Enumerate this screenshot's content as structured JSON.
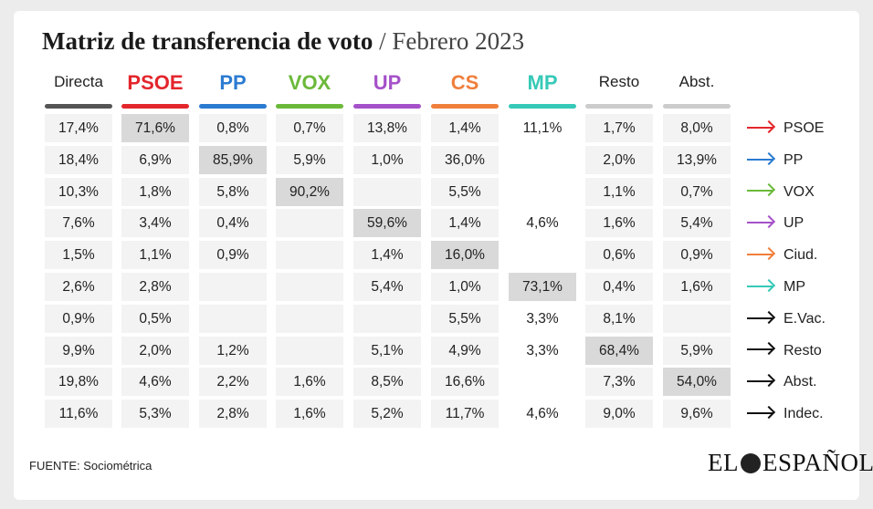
{
  "title": {
    "main": "Matriz de transferencia de voto",
    "separator": " / ",
    "date": "Febrero 2023"
  },
  "colors": {
    "PSOE": "#e3262c",
    "PP": "#2b7bd1",
    "VOX": "#6bb93a",
    "UP": "#a551c9",
    "CS": "#f07f3c",
    "MP": "#36c9b7",
    "neutral": "#cccccc",
    "highlight": "#d9d9d9",
    "cell": "#f3f3f3",
    "black": "#111111"
  },
  "chart_data": {
    "type": "table",
    "columns": [
      {
        "label": "Directa",
        "party": false,
        "color": "#555555"
      },
      {
        "label": "PSOE",
        "party": true,
        "color": "#e3262c"
      },
      {
        "label": "PP",
        "party": true,
        "color": "#2b7bd1"
      },
      {
        "label": "VOX",
        "party": true,
        "color": "#6bb93a"
      },
      {
        "label": "UP",
        "party": true,
        "color": "#a551c9"
      },
      {
        "label": "CS",
        "party": true,
        "color": "#f07f3c"
      },
      {
        "label": "MP",
        "party": true,
        "color": "#36c9b7"
      },
      {
        "label": "Resto",
        "party": false,
        "color": "#cccccc"
      },
      {
        "label": "Abst.",
        "party": false,
        "color": "#cccccc"
      }
    ],
    "rows": [
      {
        "label": "PSOE",
        "arrow_color": "#e3262c",
        "values": [
          "17,4%",
          "71,6%",
          "0,8%",
          "0,7%",
          "13,8%",
          "1,4%",
          "11,1%",
          "1,7%",
          "8,0%"
        ],
        "highlight": 1
      },
      {
        "label": "PP",
        "arrow_color": "#2b7bd1",
        "values": [
          "18,4%",
          "6,9%",
          "85,9%",
          "5,9%",
          "1,0%",
          "36,0%",
          "",
          "2,0%",
          "13,9%"
        ],
        "highlight": 2
      },
      {
        "label": "VOX",
        "arrow_color": "#6bb93a",
        "values": [
          "10,3%",
          "1,8%",
          "5,8%",
          "90,2%",
          "",
          "5,5%",
          "",
          "1,1%",
          "0,7%"
        ],
        "highlight": 3
      },
      {
        "label": "UP",
        "arrow_color": "#a551c9",
        "values": [
          "7,6%",
          "3,4%",
          "0,4%",
          "",
          "59,6%",
          "1,4%",
          "4,6%",
          "1,6%",
          "5,4%"
        ],
        "highlight": 4
      },
      {
        "label": "Ciud.",
        "arrow_color": "#f07f3c",
        "values": [
          "1,5%",
          "1,1%",
          "0,9%",
          "",
          "1,4%",
          "16,0%",
          "",
          "0,6%",
          "0,9%"
        ],
        "highlight": 5
      },
      {
        "label": "MP",
        "arrow_color": "#36c9b7",
        "values": [
          "2,6%",
          "2,8%",
          "",
          "",
          "5,4%",
          "1,0%",
          "73,1%",
          "0,4%",
          "1,6%"
        ],
        "highlight": 6
      },
      {
        "label": "E.Vac.",
        "arrow_color": "#111111",
        "values": [
          "0,9%",
          "0,5%",
          "",
          "",
          "",
          "5,5%",
          "3,3%",
          "8,1%",
          ""
        ],
        "highlight": -1
      },
      {
        "label": "Resto",
        "arrow_color": "#111111",
        "values": [
          "9,9%",
          "2,0%",
          "1,2%",
          "",
          "5,1%",
          "4,9%",
          "3,3%",
          "68,4%",
          "5,9%"
        ],
        "highlight": 7
      },
      {
        "label": "Abst.",
        "arrow_color": "#111111",
        "values": [
          "19,8%",
          "4,6%",
          "2,2%",
          "1,6%",
          "8,5%",
          "16,6%",
          "",
          "7,3%",
          "54,0%"
        ],
        "highlight": 8
      },
      {
        "label": "Indec.",
        "arrow_color": "#111111",
        "values": [
          "11,6%",
          "5,3%",
          "2,8%",
          "1,6%",
          "5,2%",
          "11,7%",
          "4,6%",
          "9,0%",
          "9,6%"
        ],
        "highlight": -1
      }
    ]
  },
  "footer": {
    "source": "FUENTE: Sociométrica",
    "logo_left": "EL",
    "logo_right": "ESPAÑOL"
  }
}
